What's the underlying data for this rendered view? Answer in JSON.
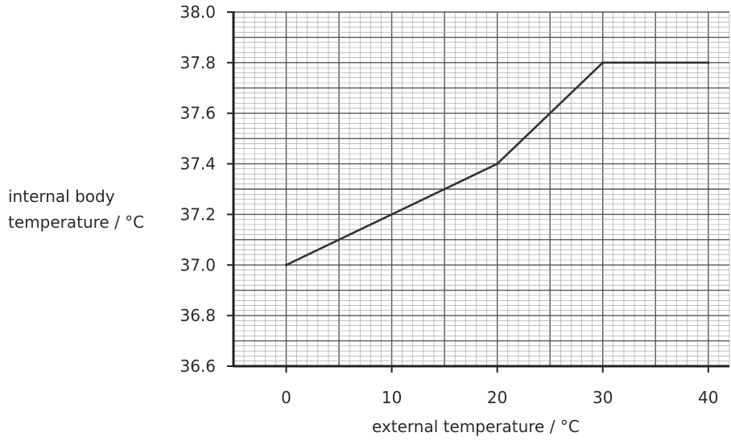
{
  "chart_data": {
    "type": "line",
    "x": [
      0,
      20,
      30,
      40
    ],
    "y": [
      37.0,
      37.4,
      37.8,
      37.8
    ],
    "xlabel": "external temperature / °C",
    "ylabel_lines": [
      "internal body",
      "temperature / °C"
    ],
    "xlim": [
      -5,
      42
    ],
    "ylim": [
      36.6,
      38.0
    ],
    "x_ticks": [
      "0",
      "10",
      "20",
      "30",
      "40"
    ],
    "y_ticks": [
      "36.6",
      "36.8",
      "37.0",
      "37.2",
      "37.4",
      "37.6",
      "37.8",
      "38.0"
    ],
    "grid": true,
    "colors": {
      "line": "#333333",
      "grid_major": "#555555",
      "grid_minor": "#9a9a9a",
      "axes": "#222222"
    }
  }
}
